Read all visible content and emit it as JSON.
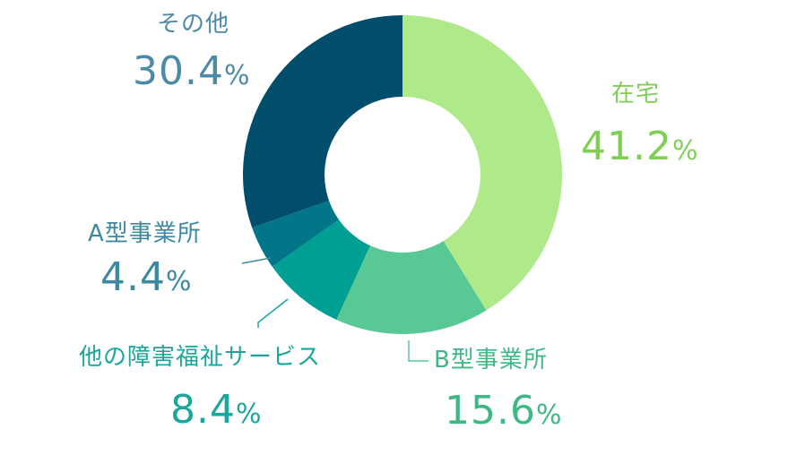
{
  "chart_data": {
    "type": "pie",
    "style": "donut",
    "unit": "%",
    "slices": [
      {
        "label": "在宅",
        "value": 41.2,
        "value_text": "41.2",
        "color": "#aeea8a",
        "text_color": "#7fcf55"
      },
      {
        "label": "B型事業所",
        "value": 15.6,
        "value_text": "15.6",
        "color": "#58c994",
        "text_color": "#3fb886"
      },
      {
        "label": "他の障害福祉サービス",
        "value": 8.4,
        "value_text": "8.4",
        "color": "#009f94",
        "text_color": "#1aa69a"
      },
      {
        "label": "A型事業所",
        "value": 4.4,
        "value_text": "4.4",
        "color": "#007688",
        "text_color": "#3d8aa0"
      },
      {
        "label": "その他",
        "value": 30.4,
        "value_text": "30.4",
        "color": "#014d6c",
        "text_color": "#4c8aa8"
      }
    ]
  }
}
